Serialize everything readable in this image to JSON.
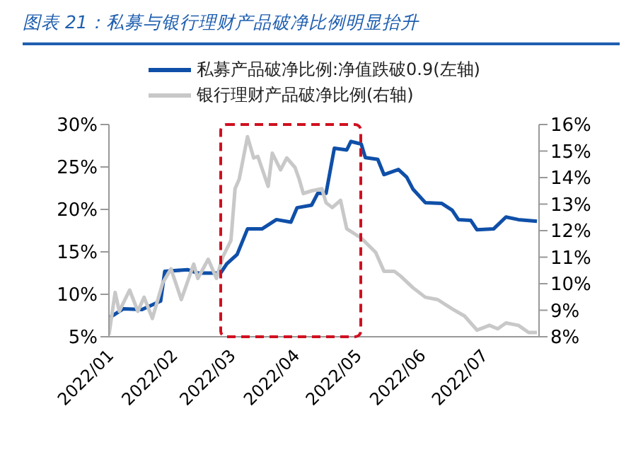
{
  "chart_data": {
    "type": "line",
    "title": "图表 21：私募与银行理财产品破净比例明显抬升",
    "legend": "top",
    "grid": false,
    "marker": "none",
    "line_style": "solid",
    "xlim": [
      "2022-01-01",
      "2022-07-28"
    ],
    "xticks": [
      {
        "value": "2022-01-01",
        "label": "2022/01"
      },
      {
        "value": "2022-02-01",
        "label": "2022/02"
      },
      {
        "value": "2022-03-01",
        "label": "2022/03"
      },
      {
        "value": "2022-04-01",
        "label": "2022/04"
      },
      {
        "value": "2022-05-01",
        "label": "2022/05"
      },
      {
        "value": "2022-06-01",
        "label": "2022/06"
      },
      {
        "value": "2022-07-01",
        "label": "2022/07"
      }
    ],
    "ylim": [
      5,
      30
    ],
    "yticks": [
      {
        "value": 5,
        "label": "5%"
      },
      {
        "value": 10,
        "label": "10%"
      },
      {
        "value": 15,
        "label": "15%"
      },
      {
        "value": 20,
        "label": "20%"
      },
      {
        "value": 25,
        "label": "25%"
      },
      {
        "value": 30,
        "label": "30%"
      }
    ],
    "y2lim": [
      8,
      16
    ],
    "y2ticks": [
      {
        "value": 8,
        "label": "8%"
      },
      {
        "value": 9,
        "label": "9%"
      },
      {
        "value": 10,
        "label": "10%"
      },
      {
        "value": 11,
        "label": "11%"
      },
      {
        "value": 12,
        "label": "12%"
      },
      {
        "value": 13,
        "label": "13%"
      },
      {
        "value": 14,
        "label": "14%"
      },
      {
        "value": 15,
        "label": "15%"
      },
      {
        "value": 16,
        "label": "16%"
      }
    ],
    "series": [
      {
        "name": "私募产品破净比例:净值跌破0.9(左轴)",
        "color": "#0f4fa8",
        "x": [
          "2022-01-01",
          "2022-01-08",
          "2022-01-17",
          "2022-01-26",
          "2022-01-28",
          "2022-02-08",
          "2022-02-13",
          "2022-02-24",
          "2022-02-27",
          "2022-03-04",
          "2022-03-09",
          "2022-03-16",
          "2022-03-23",
          "2022-03-30",
          "2022-04-02",
          "2022-04-09",
          "2022-04-12",
          "2022-04-16",
          "2022-04-20",
          "2022-04-26",
          "2022-04-28",
          "2022-05-03",
          "2022-05-05",
          "2022-05-11",
          "2022-05-14",
          "2022-05-21",
          "2022-05-25",
          "2022-05-28",
          "2022-06-03",
          "2022-06-11",
          "2022-06-16",
          "2022-06-19",
          "2022-06-25",
          "2022-06-28",
          "2022-07-06",
          "2022-07-12",
          "2022-07-18",
          "2022-07-27"
        ],
        "values": [
          7.2,
          8.3,
          8.2,
          9.2,
          12.7,
          12.9,
          12.5,
          12.5,
          13.6,
          14.7,
          17.7,
          17.7,
          18.8,
          18.5,
          20.2,
          20.5,
          21.9,
          21.9,
          27.2,
          27.0,
          28.0,
          27.7,
          26.1,
          25.9,
          24.1,
          24.7,
          23.8,
          22.4,
          20.8,
          20.7,
          19.9,
          18.8,
          18.7,
          17.6,
          17.7,
          19.1,
          18.8,
          18.6
        ]
      },
      {
        "name": "银行理财产品破净比例(右轴)",
        "color": "#c8c8c8",
        "axis": "y2",
        "x": [
          "2022-01-01",
          "2022-01-04",
          "2022-01-06",
          "2022-01-11",
          "2022-01-15",
          "2022-01-18",
          "2022-01-22",
          "2022-01-27",
          "2022-01-31",
          "2022-02-05",
          "2022-02-11",
          "2022-02-13",
          "2022-02-18",
          "2022-02-22",
          "2022-02-25",
          "2022-03-01",
          "2022-03-03",
          "2022-03-05",
          "2022-03-09",
          "2022-03-12",
          "2022-03-14",
          "2022-03-19",
          "2022-03-21",
          "2022-03-25",
          "2022-03-28",
          "2022-04-01",
          "2022-04-03",
          "2022-04-05",
          "2022-04-09",
          "2022-04-14",
          "2022-04-16",
          "2022-04-19",
          "2022-04-23",
          "2022-04-26",
          "2022-05-03",
          "2022-05-10",
          "2022-05-14",
          "2022-05-19",
          "2022-05-22",
          "2022-05-28",
          "2022-06-03",
          "2022-06-09",
          "2022-06-16",
          "2022-06-22",
          "2022-06-28",
          "2022-07-04",
          "2022-07-08",
          "2022-07-12",
          "2022-07-18",
          "2022-07-23",
          "2022-07-27"
        ],
        "values": [
          8.07,
          9.67,
          8.96,
          9.76,
          8.96,
          9.49,
          8.69,
          10.03,
          10.56,
          9.4,
          10.74,
          10.2,
          10.92,
          10.2,
          11.0,
          11.63,
          13.58,
          13.94,
          15.54,
          14.74,
          14.8,
          13.67,
          14.92,
          14.29,
          14.74,
          14.38,
          13.94,
          13.4,
          13.5,
          13.58,
          13.05,
          12.87,
          13.14,
          12.07,
          11.72,
          11.18,
          10.47,
          10.47,
          10.29,
          9.85,
          9.49,
          9.4,
          9.05,
          8.78,
          8.25,
          8.43,
          8.3,
          8.52,
          8.43,
          8.16,
          8.16
        ]
      }
    ]
  }
}
